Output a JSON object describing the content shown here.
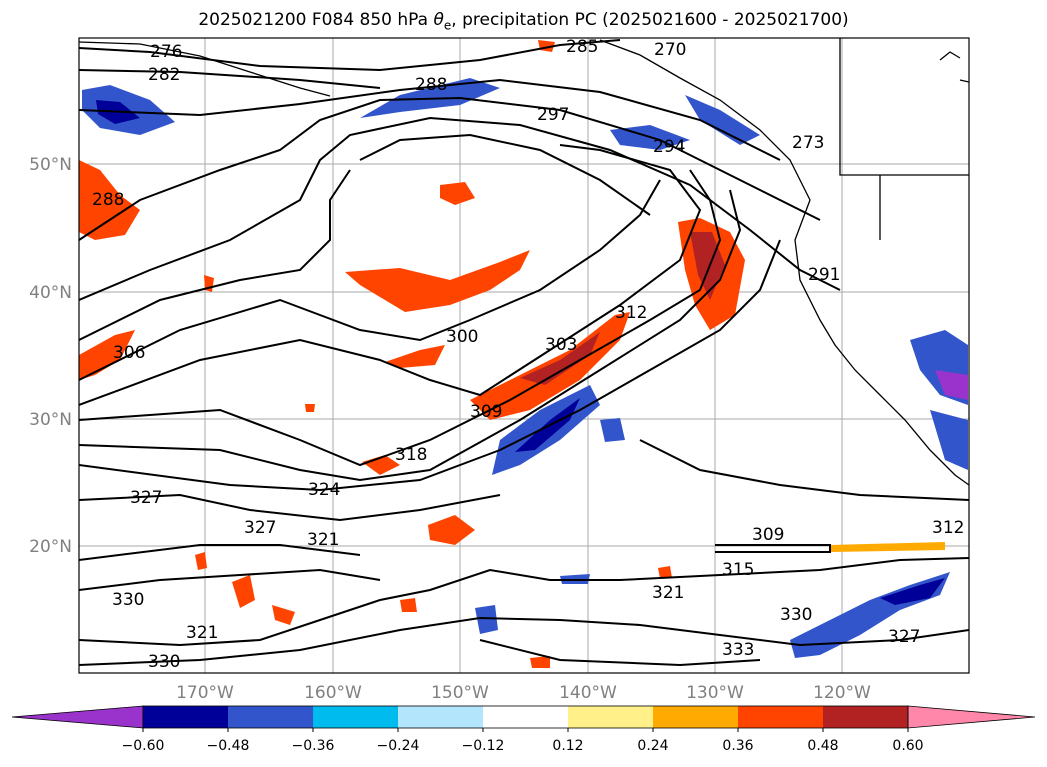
{
  "title": {
    "prefix": "2025021200 F084 850 hPa ",
    "symbol": "θ",
    "subscript": "e",
    "suffix": ", precipitation PC (2025021600 - 2025021700)"
  },
  "lat_labels": [
    "50°N",
    "40°N",
    "30°N",
    "20°N"
  ],
  "lon_labels": [
    "170°W",
    "160°W",
    "150°W",
    "140°W",
    "130°W",
    "120°W"
  ],
  "colorbar": {
    "colors": [
      "#9933cc",
      "#000099",
      "#3355cc",
      "#00bbee",
      "#b3e5fc",
      "#ffffff",
      "#fff08a",
      "#ffaa00",
      "#ff4400",
      "#b22222",
      "#ff88aa"
    ],
    "tick_labels": [
      "−0.60",
      "−0.48",
      "−0.36",
      "−0.24",
      "−0.12",
      "0.12",
      "0.24",
      "0.36",
      "0.48",
      "0.60"
    ]
  },
  "contour_labels": [
    "276",
    "282",
    "285",
    "270",
    "288",
    "297",
    "294",
    "273",
    "288",
    "291",
    "300",
    "303",
    "312",
    "306",
    "309",
    "318",
    "324",
    "327",
    "327",
    "321",
    "309",
    "312",
    "315",
    "321",
    "330",
    "330",
    "327",
    "321",
    "333",
    "330"
  ]
}
